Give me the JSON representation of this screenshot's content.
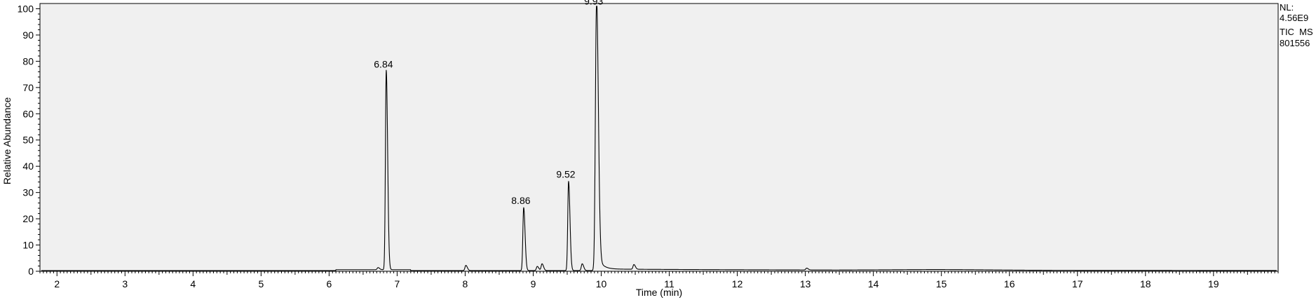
{
  "chart_data": {
    "type": "line",
    "xlabel": "Time (min)",
    "ylabel": "Relative Abundance",
    "xlim": [
      1.75,
      19.95
    ],
    "ylim": [
      0,
      102
    ],
    "x_ticks": [
      "2",
      "3",
      "4",
      "5",
      "6",
      "7",
      "8",
      "9",
      "10",
      "11",
      "12",
      "13",
      "14",
      "15",
      "16",
      "17",
      "18",
      "19"
    ],
    "y_ticks": [
      "0",
      "10",
      "20",
      "30",
      "40",
      "50",
      "60",
      "70",
      "80",
      "90",
      "100"
    ],
    "grid": false,
    "line_color": "#000000",
    "plot_background": "#f0f0f0",
    "series": [
      {
        "peaks": [
          {
            "label": "6.84",
            "x": 6.84,
            "y": 76
          },
          {
            "label": "8.86",
            "x": 8.86,
            "y": 24
          },
          {
            "label": "9.52",
            "x": 9.52,
            "y": 34
          },
          {
            "label": "9.93",
            "x": 9.93,
            "y": 100
          }
        ],
        "minor_peaks": [
          {
            "x": 6.72,
            "y": 0.8
          },
          {
            "x": 8.01,
            "y": 2.0
          },
          {
            "x": 9.06,
            "y": 1.6
          },
          {
            "x": 9.13,
            "y": 2.6
          },
          {
            "x": 9.72,
            "y": 2.6
          },
          {
            "x": 10.48,
            "y": 1.8
          },
          {
            "x": 13.02,
            "y": 0.7
          }
        ]
      }
    ],
    "info": {
      "nl_label": "NL:",
      "nl_value": "4.56E9",
      "scan_filter": "TIC  MS",
      "file_name": "801556"
    }
  }
}
